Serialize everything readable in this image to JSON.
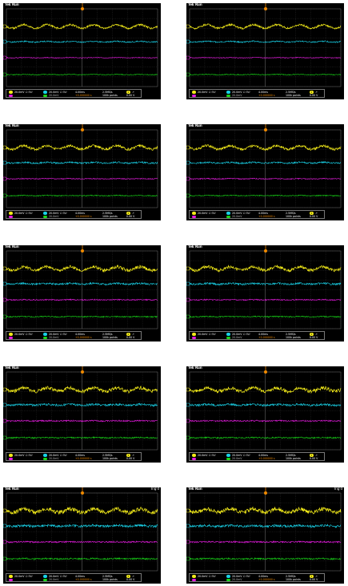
{
  "panels": [
    {
      "status": "",
      "show_status": false
    },
    {
      "status": "",
      "show_status": false
    },
    {
      "status": "",
      "show_status": false
    },
    {
      "status": "",
      "show_status": false
    },
    {
      "status": "",
      "show_status": false
    },
    {
      "status": "",
      "show_status": false
    },
    {
      "status": "",
      "show_status": false
    },
    {
      "status": "",
      "show_status": false
    },
    {
      "status": "Trig'd",
      "show_status": true
    },
    {
      "status": "Trig'd",
      "show_status": true
    }
  ],
  "scope": {
    "brand": "Tek Run",
    "ch1_scale": "20.0mV",
    "ch2_scale": "20.0mV",
    "ch3_scale": "",
    "ch4_scale": "20.0mV",
    "coupling": "Ω BW",
    "timebase": "4.00ms",
    "sample_rate": "2.5MS/s",
    "points": "100k points",
    "trigger_label": "1",
    "trigger_level": "0.00 V",
    "delay": "+0.000000 s"
  },
  "colors": {
    "ch1": "#f2ea19",
    "ch2": "#19d2e8",
    "ch3": "#e619e0",
    "ch4": "#19d619",
    "trigger": "#f08a00",
    "grid": "#5a5a5a"
  }
}
